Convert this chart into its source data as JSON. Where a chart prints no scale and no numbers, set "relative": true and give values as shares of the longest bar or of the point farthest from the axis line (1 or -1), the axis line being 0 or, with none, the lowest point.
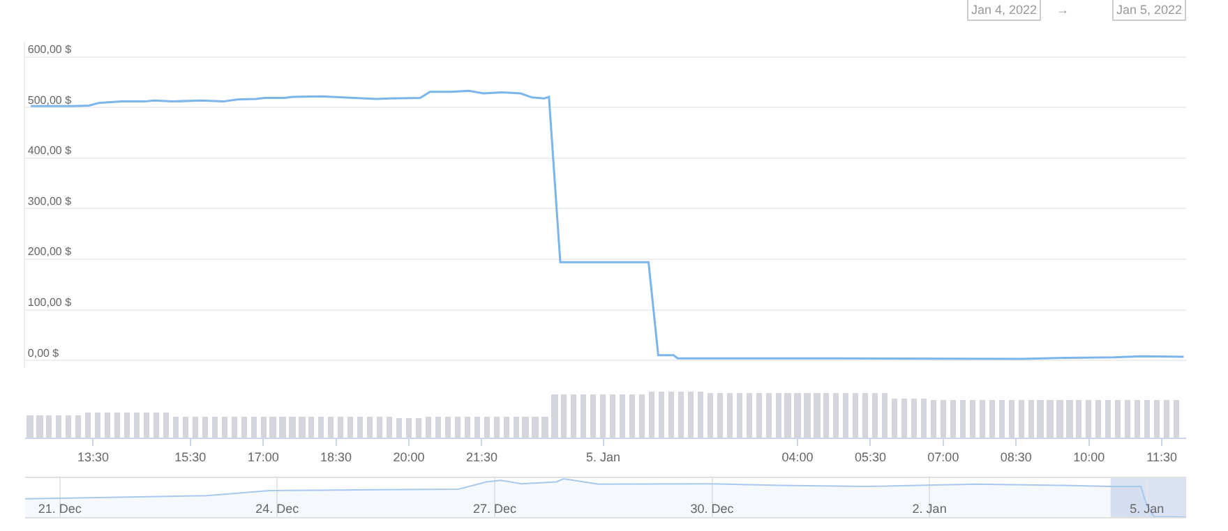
{
  "chart_data": [
    {
      "type": "line",
      "color": "#7cb5ec",
      "grid": "y",
      "tick_labels": "y",
      "x": [
        "2022-01-04T12:13",
        "2022-01-04T13:05",
        "2022-01-04T13:25",
        "2022-01-04T13:37",
        "2022-01-04T14:05",
        "2022-01-04T14:34",
        "2022-01-04T14:45",
        "2022-01-04T15:08",
        "2022-01-04T15:43",
        "2022-01-04T16:11",
        "2022-01-04T16:28",
        "2022-01-04T16:51",
        "2022-01-04T17:02",
        "2022-01-04T17:26",
        "2022-01-04T17:37",
        "2022-01-04T18:11",
        "2022-01-04T18:52",
        "2022-01-04T19:20",
        "2022-01-04T19:37",
        "2022-01-04T20:14",
        "2022-01-04T20:26",
        "2022-01-04T20:52",
        "2022-01-04T21:14",
        "2022-01-04T21:32",
        "2022-01-04T21:55",
        "2022-01-04T22:18",
        "2022-01-04T22:32",
        "2022-01-04T22:47",
        "2022-01-04T22:53",
        "2022-01-04T23:07",
        "2022-01-05T00:01",
        "2022-01-05T00:56",
        "2022-01-05T01:08",
        "2022-01-05T01:27",
        "2022-01-05T01:32",
        "2022-01-05T02:53",
        "2022-01-05T04:47",
        "2022-01-05T08:37",
        "2022-01-05T09:34",
        "2022-01-05T10:31",
        "2022-01-05T11:06",
        "2022-01-05T11:57"
      ],
      "values": [
        503,
        503,
        504,
        509,
        512,
        512,
        514,
        512,
        514,
        512,
        516,
        517,
        519,
        519,
        521,
        522,
        519,
        517,
        518,
        519,
        531,
        531,
        533,
        528,
        530,
        528,
        520,
        518,
        521,
        194,
        194,
        194,
        10,
        10,
        4,
        4,
        4,
        3,
        5,
        6,
        8,
        7
      ],
      "xlim": [
        "2022-01-04T12:06",
        "2022-01-05T12:00"
      ],
      "ylim": [
        -15,
        630
      ],
      "yticks": [
        {
          "value": 0,
          "label": "0,00 $"
        },
        {
          "value": 100,
          "label": "100,00 $"
        },
        {
          "value": 200,
          "label": "200,00 $"
        },
        {
          "value": 300,
          "label": "300,00 $"
        },
        {
          "value": 400,
          "label": "400,00 $"
        },
        {
          "value": 500,
          "label": "500,00 $"
        },
        {
          "value": 600,
          "label": "600,00 $"
        }
      ],
      "annotations": [
        "Jan 4, 2022",
        "→",
        "Jan 5, 2022"
      ]
    },
    {
      "type": "bar",
      "relative": true,
      "color": "#d3d4dc",
      "tick_labels": "x",
      "x": [
        "2022-01-04T12:12",
        "2022-01-04T12:24",
        "2022-01-04T12:36",
        "2022-01-04T12:48",
        "2022-01-04T13:00",
        "2022-01-04T13:12",
        "2022-01-04T13:24",
        "2022-01-04T13:36",
        "2022-01-04T13:48",
        "2022-01-04T14:00",
        "2022-01-04T14:12",
        "2022-01-04T14:24",
        "2022-01-04T14:36",
        "2022-01-04T14:48",
        "2022-01-04T15:00",
        "2022-01-04T15:12",
        "2022-01-04T15:24",
        "2022-01-04T15:36",
        "2022-01-04T15:48",
        "2022-01-04T16:00",
        "2022-01-04T16:12",
        "2022-01-04T16:24",
        "2022-01-04T16:36",
        "2022-01-04T16:48",
        "2022-01-04T17:00",
        "2022-01-04T17:12",
        "2022-01-04T17:24",
        "2022-01-04T17:36",
        "2022-01-04T17:48",
        "2022-01-04T18:00",
        "2022-01-04T18:12",
        "2022-01-04T18:24",
        "2022-01-04T18:36",
        "2022-01-04T18:48",
        "2022-01-04T19:00",
        "2022-01-04T19:12",
        "2022-01-04T19:24",
        "2022-01-04T19:36",
        "2022-01-04T19:48",
        "2022-01-04T20:00",
        "2022-01-04T20:12",
        "2022-01-04T20:24",
        "2022-01-04T20:36",
        "2022-01-04T20:48",
        "2022-01-04T21:00",
        "2022-01-04T21:12",
        "2022-01-04T21:24",
        "2022-01-04T21:36",
        "2022-01-04T21:48",
        "2022-01-04T22:00",
        "2022-01-04T22:12",
        "2022-01-04T22:24",
        "2022-01-04T22:36",
        "2022-01-04T22:48",
        "2022-01-04T23:00",
        "2022-01-04T23:12",
        "2022-01-04T23:24",
        "2022-01-04T23:36",
        "2022-01-04T23:48",
        "2022-01-05T00:00",
        "2022-01-05T00:12",
        "2022-01-05T00:24",
        "2022-01-05T00:36",
        "2022-01-05T00:48",
        "2022-01-05T01:00",
        "2022-01-05T01:12",
        "2022-01-05T01:24",
        "2022-01-05T01:36",
        "2022-01-05T01:48",
        "2022-01-05T02:00",
        "2022-01-05T02:12",
        "2022-01-05T02:24",
        "2022-01-05T02:36",
        "2022-01-05T02:48",
        "2022-01-05T03:00",
        "2022-01-05T03:12",
        "2022-01-05T03:24",
        "2022-01-05T03:36",
        "2022-01-05T03:48",
        "2022-01-05T04:00",
        "2022-01-05T04:12",
        "2022-01-05T04:24",
        "2022-01-05T04:36",
        "2022-01-05T04:48",
        "2022-01-05T05:00",
        "2022-01-05T05:12",
        "2022-01-05T05:24",
        "2022-01-05T05:36",
        "2022-01-05T05:48",
        "2022-01-05T06:00",
        "2022-01-05T06:12",
        "2022-01-05T06:24",
        "2022-01-05T06:36",
        "2022-01-05T06:48",
        "2022-01-05T07:00",
        "2022-01-05T07:12",
        "2022-01-05T07:24",
        "2022-01-05T07:36",
        "2022-01-05T07:48",
        "2022-01-05T08:00",
        "2022-01-05T08:12",
        "2022-01-05T08:24",
        "2022-01-05T08:36",
        "2022-01-05T08:48",
        "2022-01-05T09:00",
        "2022-01-05T09:12",
        "2022-01-05T09:24",
        "2022-01-05T09:36",
        "2022-01-05T09:48",
        "2022-01-05T10:00",
        "2022-01-05T10:12",
        "2022-01-05T10:24",
        "2022-01-05T10:36",
        "2022-01-05T10:48",
        "2022-01-05T11:00",
        "2022-01-05T11:12",
        "2022-01-05T11:24",
        "2022-01-05T11:36",
        "2022-01-05T11:48"
      ],
      "values": [
        0.49,
        0.49,
        0.49,
        0.49,
        0.49,
        0.49,
        0.53,
        0.53,
        0.53,
        0.53,
        0.53,
        0.53,
        0.53,
        0.53,
        0.53,
        0.45,
        0.45,
        0.45,
        0.45,
        0.45,
        0.45,
        0.45,
        0.45,
        0.45,
        0.45,
        0.45,
        0.45,
        0.45,
        0.45,
        0.45,
        0.45,
        0.45,
        0.45,
        0.45,
        0.45,
        0.45,
        0.45,
        0.45,
        0.41,
        0.41,
        0.41,
        0.45,
        0.45,
        0.45,
        0.45,
        0.45,
        0.45,
        0.45,
        0.45,
        0.45,
        0.45,
        0.45,
        0.45,
        0.45,
        0.94,
        0.94,
        0.94,
        0.94,
        0.94,
        0.94,
        0.94,
        0.94,
        0.94,
        0.94,
        1,
        1,
        1,
        1,
        1,
        1,
        0.96,
        0.96,
        0.96,
        0.96,
        0.96,
        0.96,
        0.96,
        0.96,
        0.96,
        0.96,
        0.96,
        0.96,
        0.96,
        0.96,
        0.96,
        0.96,
        0.96,
        0.96,
        0.96,
        0.85,
        0.85,
        0.85,
        0.85,
        0.82,
        0.82,
        0.82,
        0.82,
        0.82,
        0.82,
        0.82,
        0.82,
        0.82,
        0.82,
        0.82,
        0.82,
        0.82,
        0.82,
        0.82,
        0.82,
        0.82,
        0.82,
        0.82,
        0.82,
        0.82,
        0.82,
        0.82,
        0.82,
        0.82,
        0.82
      ],
      "xlim": [
        "2022-01-04T12:06",
        "2022-01-05T12:00"
      ],
      "xticks": [
        {
          "value": "2022-01-04T13:30",
          "label": "13:30"
        },
        {
          "value": "2022-01-04T15:30",
          "label": "15:30"
        },
        {
          "value": "2022-01-04T17:00",
          "label": "17:00"
        },
        {
          "value": "2022-01-04T18:30",
          "label": "18:30"
        },
        {
          "value": "2022-01-04T20:00",
          "label": "20:00"
        },
        {
          "value": "2022-01-04T21:30",
          "label": "21:30"
        },
        {
          "value": "2022-01-05",
          "label": "5. Jan"
        },
        {
          "value": "2022-01-05T04:00",
          "label": "04:00"
        },
        {
          "value": "2022-01-05T05:30",
          "label": "05:30"
        },
        {
          "value": "2022-01-05T07:00",
          "label": "07:00"
        },
        {
          "value": "2022-01-05T08:30",
          "label": "08:30"
        },
        {
          "value": "2022-01-05T10:00",
          "label": "10:00"
        },
        {
          "value": "2022-01-05T11:30",
          "label": "11:30"
        }
      ]
    },
    {
      "type": "area",
      "relative": true,
      "color": "#a9c8ee",
      "grid": "x",
      "tick_labels": "x",
      "x": [
        "2021-12-20T12:30",
        "2021-12-21T00:00",
        "2021-12-23T00:40",
        "2021-12-23T21:30",
        "2021-12-25T17:30",
        "2021-12-26T12:00",
        "2021-12-26T21:20",
        "2021-12-27T02:00",
        "2021-12-27T09:00",
        "2021-12-27T20:30",
        "2021-12-27T22:50",
        "2021-12-28T10:20",
        "2021-12-29T23:30",
        "2021-12-30T22:30",
        "2022-01-01T02:25",
        "2022-01-02T15:20",
        "2022-01-03T19:10",
        "2022-01-04T11:30",
        "2022-01-04T22:00",
        "2022-01-05T00:00",
        "2022-01-05T02:25",
        "2022-01-05T13:00"
      ],
      "values": [
        0.48,
        0.49,
        0.56,
        0.69,
        0.72,
        0.73,
        0.92,
        0.96,
        0.87,
        0.92,
        1,
        0.86,
        0.87,
        0.83,
        0.8,
        0.86,
        0.83,
        0.8,
        0.8,
        0.31,
        0.01,
        0
      ],
      "xlim": [
        "2021-12-20T12:30",
        "2022-01-05T13:00"
      ],
      "xticks": [
        {
          "value": "2021-12-21",
          "label": "21. Dec"
        },
        {
          "value": "2021-12-24",
          "label": "24. Dec"
        },
        {
          "value": "2021-12-27",
          "label": "27. Dec"
        },
        {
          "value": "2021-12-30",
          "label": "30. Dec"
        },
        {
          "value": "2022-01-02",
          "label": "2. Jan"
        },
        {
          "value": "2022-01-05",
          "label": "5. Jan"
        }
      ],
      "bands": [
        {
          "axis": "x",
          "from": "2022-01-04T12:00",
          "to": "2022-01-05T13:00",
          "color": "#ccd6eb"
        }
      ]
    }
  ]
}
